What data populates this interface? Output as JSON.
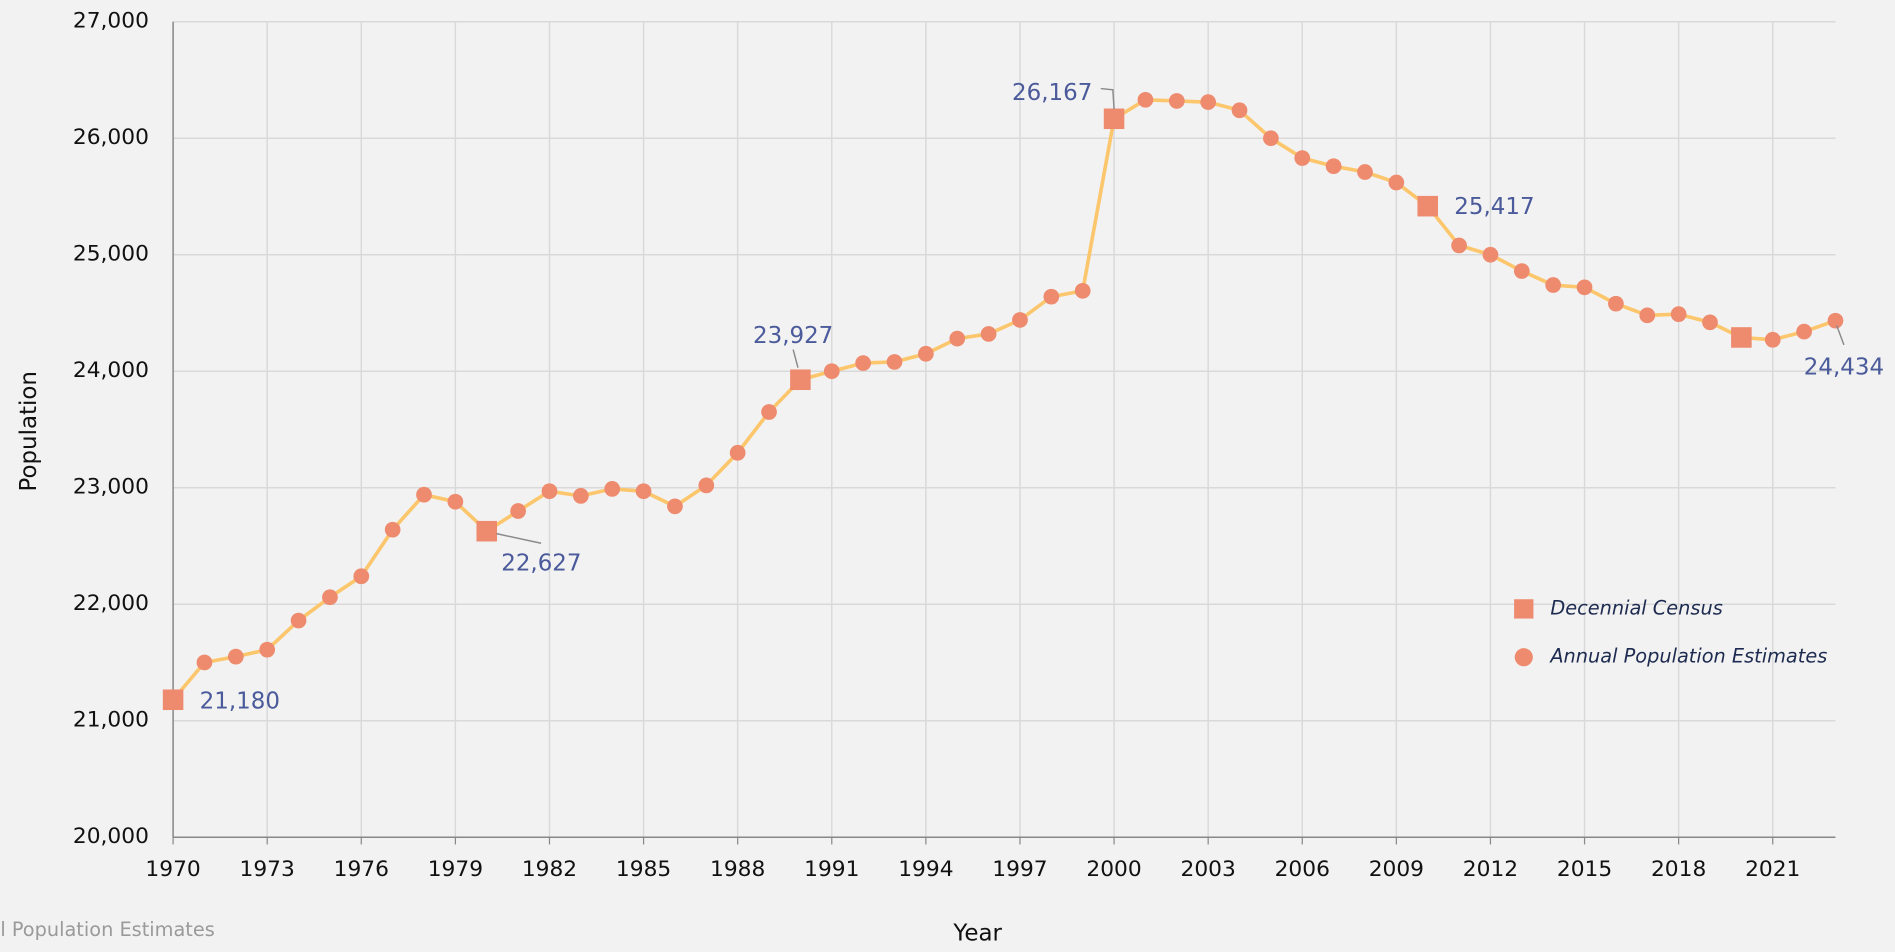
{
  "chart_data": {
    "type": "line",
    "xlabel": "Year",
    "ylabel": "Population",
    "footnote": "l Population Estimates",
    "xlim": [
      1970,
      2023
    ],
    "xticks": [
      1970,
      1973,
      1976,
      1979,
      1982,
      1985,
      1988,
      1991,
      1994,
      1997,
      2000,
      2003,
      2006,
      2009,
      2012,
      2015,
      2018,
      2021
    ],
    "ylim": [
      20000,
      27000
    ],
    "yticks": [
      {
        "value": 20000,
        "label": "20,000"
      },
      {
        "value": 21000,
        "label": "21,000"
      },
      {
        "value": 22000,
        "label": "22,000"
      },
      {
        "value": 23000,
        "label": "23,000"
      },
      {
        "value": 24000,
        "label": "24,000"
      },
      {
        "value": 25000,
        "label": "25,000"
      },
      {
        "value": 26000,
        "label": "26,000"
      },
      {
        "value": 27000,
        "label": "27,000"
      }
    ],
    "grid": true,
    "line_color": "#fcc66c",
    "legend": "lower right",
    "series": [
      {
        "name": "Decennial Census",
        "marker": "square",
        "color": "#ee8a6e",
        "x": [
          1970,
          1980,
          1990,
          2000,
          2010,
          2020
        ],
        "values": [
          21180,
          22627,
          23927,
          26167,
          25417,
          24290
        ],
        "value_labels": [
          "21,180",
          "22,627",
          "23,927",
          "26,167",
          "25,417",
          null
        ]
      },
      {
        "name": "Annual Population Estimates",
        "marker": "circle",
        "color": "#ee8a6e",
        "x": [
          1971,
          1972,
          1973,
          1974,
          1975,
          1976,
          1977,
          1978,
          1979,
          1981,
          1982,
          1983,
          1984,
          1985,
          1986,
          1987,
          1988,
          1989,
          1991,
          1992,
          1993,
          1994,
          1995,
          1996,
          1997,
          1998,
          1999,
          2001,
          2002,
          2003,
          2004,
          2005,
          2006,
          2007,
          2008,
          2009,
          2011,
          2012,
          2013,
          2014,
          2015,
          2016,
          2017,
          2018,
          2019,
          2021,
          2022,
          2023
        ],
        "values": [
          21500,
          21550,
          21610,
          21860,
          22060,
          22240,
          22640,
          22940,
          22880,
          22800,
          22970,
          22930,
          22990,
          22970,
          22840,
          23020,
          23300,
          23650,
          24000,
          24070,
          24080,
          24150,
          24280,
          24320,
          24440,
          24640,
          24690,
          26330,
          26320,
          26310,
          26240,
          26000,
          25830,
          25760,
          25710,
          25620,
          25080,
          25000,
          24860,
          24740,
          24720,
          24580,
          24480,
          24490,
          24420,
          24270,
          24340,
          24434
        ],
        "value_labels": [
          null,
          null,
          null,
          null,
          null,
          null,
          null,
          null,
          null,
          null,
          null,
          null,
          null,
          null,
          null,
          null,
          null,
          null,
          null,
          null,
          null,
          null,
          null,
          null,
          null,
          null,
          null,
          null,
          null,
          null,
          null,
          null,
          null,
          null,
          null,
          null,
          null,
          null,
          null,
          null,
          null,
          null,
          null,
          null,
          null,
          null,
          null,
          "24,434"
        ]
      }
    ]
  }
}
